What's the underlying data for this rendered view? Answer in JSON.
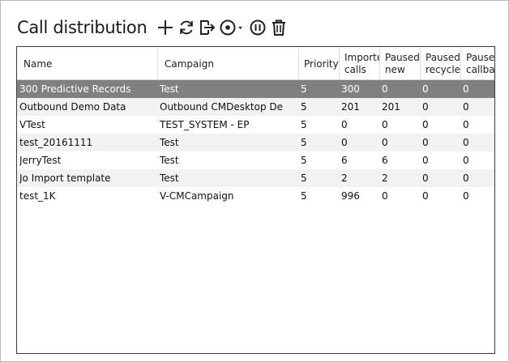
{
  "header": {
    "title": "Call distribution"
  },
  "toolbar": [
    {
      "icon": "plus-icon",
      "name": "add-button"
    },
    {
      "icon": "refresh-icon",
      "name": "refresh-button"
    },
    {
      "icon": "export-icon",
      "name": "export-button"
    },
    {
      "icon": "record-dropdown-icon",
      "name": "start-dropdown-button"
    },
    {
      "icon": "pause-icon",
      "name": "pause-button"
    },
    {
      "icon": "trash-icon",
      "name": "delete-button"
    }
  ],
  "table": {
    "columns": [
      {
        "key": "name",
        "label": "Name"
      },
      {
        "key": "campaign",
        "label": "Campaign"
      },
      {
        "key": "priority",
        "label": "Priority"
      },
      {
        "key": "imported",
        "label_line1": "Imported",
        "label_line2": "calls"
      },
      {
        "key": "paused_new",
        "label_line1": "Paused",
        "label_line2": "new"
      },
      {
        "key": "paused_recycle",
        "label_line1": "Paused",
        "label_line2": "recycle"
      },
      {
        "key": "paused_callback",
        "label_line1": "Paused",
        "label_line2": "callback"
      }
    ],
    "rows": [
      {
        "name": "300 Predictive Records",
        "campaign": "Test",
        "priority": "5",
        "imported": "300",
        "paused_new": "0",
        "paused_recycle": "0",
        "paused_callback": "0",
        "selected": true
      },
      {
        "name": "Outbound Demo Data",
        "campaign": "Outbound CMDesktop De",
        "priority": "5",
        "imported": "201",
        "paused_new": "201",
        "paused_recycle": "0",
        "paused_callback": "0"
      },
      {
        "name": "VTest",
        "campaign": "TEST_SYSTEM - EP",
        "priority": "5",
        "imported": "0",
        "paused_new": "0",
        "paused_recycle": "0",
        "paused_callback": "0"
      },
      {
        "name": "test_20161111",
        "campaign": "Test",
        "priority": "5",
        "imported": "0",
        "paused_new": "0",
        "paused_recycle": "0",
        "paused_callback": "0"
      },
      {
        "name": "JerryTest",
        "campaign": "Test",
        "priority": "5",
        "imported": "6",
        "paused_new": "6",
        "paused_recycle": "0",
        "paused_callback": "0"
      },
      {
        "name": "Jo Import template",
        "campaign": "Test",
        "priority": "5",
        "imported": "2",
        "paused_new": "2",
        "paused_recycle": "0",
        "paused_callback": "0"
      },
      {
        "name": "test_1K",
        "campaign": "V-CMCampaign",
        "priority": "5",
        "imported": "996",
        "paused_new": "0",
        "paused_recycle": "0",
        "paused_callback": "0"
      }
    ]
  }
}
